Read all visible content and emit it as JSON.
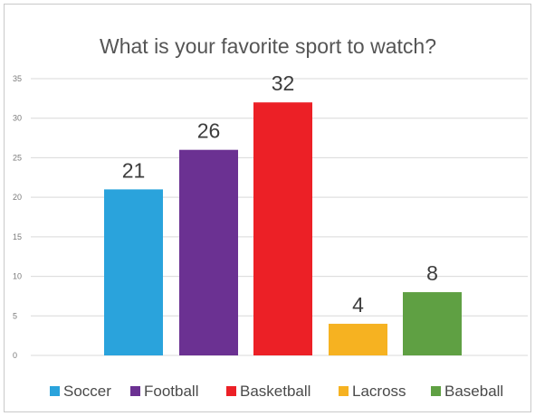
{
  "chart_data": {
    "type": "bar",
    "title": "What is your favorite sport to watch?",
    "categories": [
      "Soccer",
      "Football",
      "Basketball",
      "Lacross",
      "Baseball"
    ],
    "values": [
      21,
      26,
      32,
      4,
      8
    ],
    "colors": [
      "#2aa3dc",
      "#6b3192",
      "#ec2026",
      "#f6b221",
      "#5fa043"
    ],
    "yticks": [
      "0",
      "5",
      "10",
      "15",
      "20",
      "25",
      "30",
      "35"
    ],
    "ylim": [
      0,
      35
    ],
    "grid": true,
    "legend_position": "bottom",
    "xlabel": "",
    "ylabel": ""
  }
}
